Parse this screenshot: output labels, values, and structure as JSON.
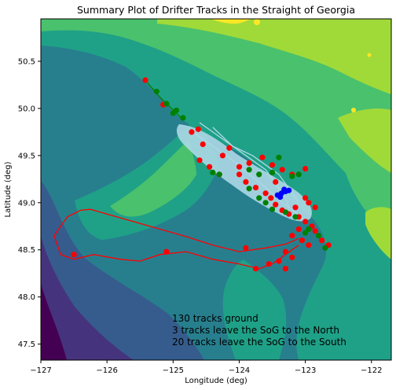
{
  "chart_data": {
    "type": "map-scatter",
    "title": "Summary Plot of Drifter Tracks in the Straight of Georgia",
    "xlabel": "Longitude (deg)",
    "ylabel": "Latitude (deg)",
    "xlim": [
      -127.0,
      -121.7
    ],
    "ylim": [
      47.33,
      50.95
    ],
    "xticks": [
      -127,
      -126,
      -125,
      -124,
      -123,
      -122
    ],
    "xtick_labels": [
      "−127",
      "−126",
      "−125",
      "−124",
      "−123",
      "−122"
    ],
    "yticks": [
      47.5,
      48.0,
      48.5,
      49.0,
      49.5,
      50.0,
      50.5
    ],
    "ytick_labels": [
      "47.5",
      "48.0",
      "48.5",
      "49.0",
      "49.5",
      "50.0",
      "50.5"
    ],
    "grid": false,
    "legend": "none",
    "background": "filled elevation / bathymetry contours (viridis colormap)",
    "colors": {
      "deep_water": "#440154",
      "water_1": "#46337e",
      "water_2": "#365c8d",
      "shelf": "#277f8e",
      "lowland": "#1fa187",
      "hills": "#4ac16d",
      "mountains": "#a0da39",
      "peaks": "#fde725",
      "tracks_sog": "#add8e6",
      "grounded": "#d62728",
      "exit_south": "#ff0000",
      "exit_north": "#008000",
      "start": "#0000ff"
    },
    "series": [
      {
        "marker": "track",
        "color": "#ff0000",
        "points": [
          [
            -123.1,
            48.62
          ],
          [
            -123.3,
            48.56
          ],
          [
            -123.6,
            48.52
          ],
          [
            -124.0,
            48.48
          ],
          [
            -124.4,
            48.55
          ],
          [
            -124.8,
            48.64
          ],
          [
            -125.2,
            48.72
          ],
          [
            -125.6,
            48.8
          ],
          [
            -126.0,
            48.88
          ],
          [
            -126.25,
            48.93
          ],
          [
            -126.4,
            48.92
          ],
          [
            -126.6,
            48.85
          ],
          [
            -126.8,
            48.65
          ],
          [
            -126.7,
            48.45
          ],
          [
            -126.5,
            48.4
          ],
          [
            -126.2,
            48.45
          ],
          [
            -125.8,
            48.4
          ],
          [
            -125.5,
            48.38
          ],
          [
            -125.2,
            48.45
          ],
          [
            -124.8,
            48.48
          ],
          [
            -124.4,
            48.4
          ],
          [
            -124.0,
            48.35
          ],
          [
            -123.7,
            48.3
          ],
          [
            -123.5,
            48.35
          ],
          [
            -123.3,
            48.45
          ],
          [
            -123.1,
            48.55
          ]
        ]
      },
      {
        "marker": "track",
        "color": "#add8e6",
        "points": [
          [
            -124.6,
            49.85
          ],
          [
            -124.4,
            49.75
          ],
          [
            -124.2,
            49.65
          ],
          [
            -124.0,
            49.55
          ],
          [
            -123.8,
            49.45
          ],
          [
            -123.6,
            49.35
          ],
          [
            -123.5,
            49.25
          ],
          [
            -123.4,
            49.15
          ],
          [
            -123.3,
            49.05
          ],
          [
            -123.25,
            48.95
          ]
        ]
      },
      {
        "marker": "track",
        "color": "#add8e6",
        "points": [
          [
            -124.7,
            49.75
          ],
          [
            -124.5,
            49.65
          ],
          [
            -124.3,
            49.55
          ],
          [
            -124.1,
            49.45
          ],
          [
            -123.9,
            49.33
          ],
          [
            -123.7,
            49.22
          ],
          [
            -123.5,
            49.1
          ],
          [
            -123.35,
            49.0
          ],
          [
            -123.15,
            48.9
          ],
          [
            -123.0,
            48.8
          ]
        ]
      },
      {
        "marker": "track",
        "color": "#add8e6",
        "points": [
          [
            -124.4,
            49.8
          ],
          [
            -124.1,
            49.6
          ],
          [
            -123.8,
            49.5
          ],
          [
            -123.6,
            49.4
          ],
          [
            -123.4,
            49.3
          ],
          [
            -123.3,
            49.2
          ],
          [
            -123.2,
            49.1
          ],
          [
            -123.1,
            49.0
          ]
        ]
      },
      {
        "marker": "track",
        "color": "#008000",
        "points": [
          [
            -125.4,
            50.28
          ],
          [
            -125.3,
            50.2
          ],
          [
            -125.2,
            50.12
          ],
          [
            -125.1,
            50.05
          ],
          [
            -124.95,
            49.95
          ],
          [
            -124.85,
            49.88
          ]
        ]
      },
      {
        "marker": "o",
        "color": "#ff0000",
        "name_key": "grounded",
        "points": [
          [
            -125.42,
            50.3
          ],
          [
            -125.15,
            50.04
          ],
          [
            -124.72,
            49.75
          ],
          [
            -124.62,
            49.78
          ],
          [
            -124.55,
            49.62
          ],
          [
            -124.25,
            49.5
          ],
          [
            -124.15,
            49.58
          ],
          [
            -124.0,
            49.38
          ],
          [
            -123.85,
            49.42
          ],
          [
            -123.65,
            49.48
          ],
          [
            -123.5,
            49.4
          ],
          [
            -123.35,
            49.35
          ],
          [
            -123.2,
            49.3
          ],
          [
            -123.0,
            49.36
          ],
          [
            -124.0,
            49.3
          ],
          [
            -123.9,
            49.22
          ],
          [
            -123.75,
            49.16
          ],
          [
            -123.6,
            49.1
          ],
          [
            -123.52,
            49.05
          ],
          [
            -123.45,
            48.98
          ],
          [
            -123.35,
            48.92
          ],
          [
            -123.25,
            48.88
          ],
          [
            -123.1,
            48.85
          ],
          [
            -123.0,
            48.8
          ],
          [
            -122.9,
            48.75
          ],
          [
            -122.85,
            48.7
          ],
          [
            -123.1,
            48.72
          ],
          [
            -123.2,
            48.65
          ],
          [
            -123.05,
            48.6
          ],
          [
            -122.95,
            48.55
          ],
          [
            -122.75,
            48.6
          ],
          [
            -122.65,
            48.55
          ],
          [
            -123.3,
            48.48
          ],
          [
            -123.2,
            48.42
          ],
          [
            -123.4,
            48.38
          ],
          [
            -123.55,
            48.35
          ],
          [
            -123.75,
            48.3
          ],
          [
            -123.3,
            48.3
          ],
          [
            -123.9,
            48.52
          ],
          [
            -126.5,
            48.45
          ],
          [
            -125.1,
            48.48
          ],
          [
            -123.0,
            49.05
          ],
          [
            -122.85,
            48.95
          ],
          [
            -122.95,
            49.0
          ],
          [
            -123.15,
            48.95
          ],
          [
            -123.45,
            49.22
          ],
          [
            -124.6,
            49.45
          ],
          [
            -124.45,
            49.38
          ],
          [
            -124.3,
            49.3
          ]
        ]
      },
      {
        "marker": "o",
        "color": "#008000",
        "name_key": "exit",
        "points": [
          [
            -125.25,
            50.18
          ],
          [
            -125.1,
            50.05
          ],
          [
            -124.95,
            49.98
          ],
          [
            -124.85,
            49.9
          ],
          [
            -125.0,
            49.95
          ],
          [
            -124.3,
            49.3
          ],
          [
            -124.4,
            49.32
          ],
          [
            -123.85,
            49.35
          ],
          [
            -123.7,
            49.3
          ],
          [
            -123.4,
            49.48
          ],
          [
            -123.5,
            49.32
          ],
          [
            -123.2,
            49.28
          ],
          [
            -123.1,
            49.3
          ],
          [
            -123.85,
            49.15
          ],
          [
            -123.7,
            49.05
          ],
          [
            -123.6,
            49.0
          ],
          [
            -123.5,
            48.93
          ],
          [
            -123.3,
            48.9
          ],
          [
            -123.15,
            48.85
          ],
          [
            -122.95,
            48.72
          ],
          [
            -123.0,
            48.68
          ],
          [
            -122.8,
            48.65
          ],
          [
            -122.7,
            48.52
          ]
        ]
      },
      {
        "marker": "o",
        "color": "#0000ff",
        "name_key": "start",
        "points": [
          [
            -123.42,
            49.08
          ],
          [
            -123.36,
            49.1
          ],
          [
            -123.3,
            49.12
          ],
          [
            -123.25,
            49.13
          ],
          [
            -123.38,
            49.06
          ],
          [
            -123.32,
            49.14
          ]
        ]
      }
    ],
    "annotations": [
      "130 tracks ground",
      "3 tracks leave the SoG to the North",
      "20 tracks leave the SoG to the South"
    ]
  }
}
